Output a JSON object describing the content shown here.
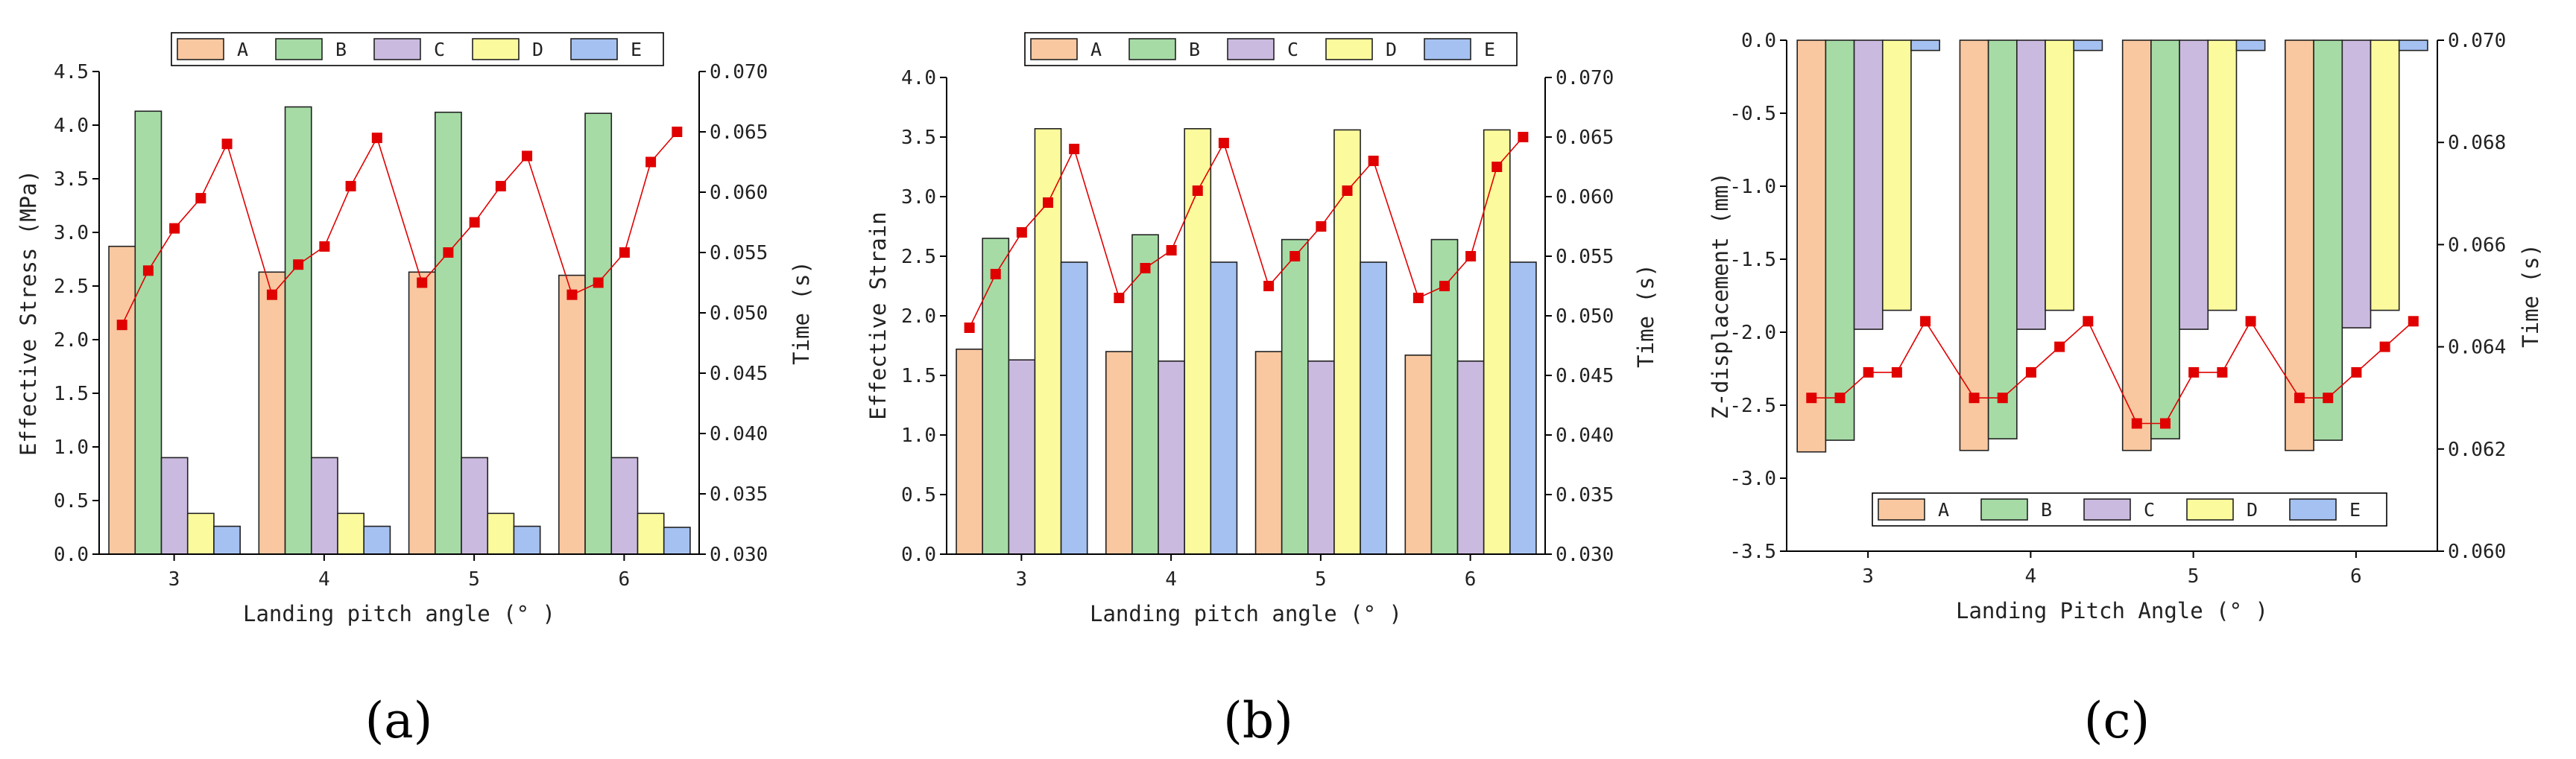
{
  "colors": {
    "A": "#f9c8a0",
    "B": "#a6dba6",
    "C": "#cbbadf",
    "D": "#fbfb9d",
    "E": "#a5c1f1",
    "marker": "#e00000"
  },
  "series_names": [
    "A",
    "B",
    "C",
    "D",
    "E"
  ],
  "chart_data": [
    {
      "type": "bar",
      "title": "",
      "panel_label": "(a)",
      "xlabel": "Landing pitch angle (° )",
      "ylabel": "Effective Stress (MPa)",
      "y2label": "Time (s)",
      "categories": [
        "3",
        "4",
        "5",
        "6"
      ],
      "ylim": [
        0,
        4.5
      ],
      "yticks": [
        "0.0",
        "0.5",
        "1.0",
        "1.5",
        "2.0",
        "2.5",
        "3.0",
        "3.5",
        "4.0",
        "4.5"
      ],
      "y2lim": [
        0.03,
        0.07
      ],
      "y2ticks": [
        "0.030",
        "0.035",
        "0.040",
        "0.045",
        "0.050",
        "0.055",
        "0.060",
        "0.065",
        "0.070"
      ],
      "legend_position": "top",
      "series": [
        {
          "name": "A",
          "values": [
            2.87,
            2.63,
            2.63,
            2.6
          ]
        },
        {
          "name": "B",
          "values": [
            4.13,
            4.17,
            4.12,
            4.11
          ]
        },
        {
          "name": "C",
          "values": [
            0.9,
            0.9,
            0.9,
            0.9
          ]
        },
        {
          "name": "D",
          "values": [
            0.38,
            0.38,
            0.38,
            0.38
          ]
        },
        {
          "name": "E",
          "values": [
            0.26,
            0.26,
            0.26,
            0.25
          ]
        }
      ],
      "time_series": {
        "name": "Time",
        "values": [
          [
            0.049,
            0.0535,
            0.057,
            0.0595,
            0.064
          ],
          [
            0.0515,
            0.054,
            0.0555,
            0.0605,
            0.0645
          ],
          [
            0.0525,
            0.055,
            0.0575,
            0.0605,
            0.063
          ],
          [
            0.0515,
            0.0525,
            0.055,
            0.0625,
            0.065
          ]
        ]
      }
    },
    {
      "type": "bar",
      "title": "",
      "panel_label": "(b)",
      "xlabel": "Landing pitch angle (° )",
      "ylabel": "Effective Strain",
      "y2label": "Time (s)",
      "categories": [
        "3",
        "4",
        "5",
        "6"
      ],
      "ylim": [
        0,
        4.0
      ],
      "yticks": [
        "0.0",
        "0.5",
        "1.0",
        "1.5",
        "2.0",
        "2.5",
        "3.0",
        "3.5",
        "4.0"
      ],
      "y2lim": [
        0.03,
        0.07
      ],
      "y2ticks": [
        "0.030",
        "0.035",
        "0.040",
        "0.045",
        "0.050",
        "0.055",
        "0.060",
        "0.065",
        "0.070"
      ],
      "legend_position": "top",
      "series": [
        {
          "name": "A",
          "values": [
            1.72,
            1.7,
            1.7,
            1.67
          ]
        },
        {
          "name": "B",
          "values": [
            2.65,
            2.68,
            2.64,
            2.64
          ]
        },
        {
          "name": "C",
          "values": [
            1.63,
            1.62,
            1.62,
            1.62
          ]
        },
        {
          "name": "D",
          "values": [
            3.57,
            3.57,
            3.56,
            3.56
          ]
        },
        {
          "name": "E",
          "values": [
            2.45,
            2.45,
            2.45,
            2.45
          ]
        }
      ],
      "time_series": {
        "name": "Time",
        "values": [
          [
            0.049,
            0.0535,
            0.057,
            0.0595,
            0.064
          ],
          [
            0.0515,
            0.054,
            0.0555,
            0.0605,
            0.0645
          ],
          [
            0.0525,
            0.055,
            0.0575,
            0.0605,
            0.063
          ],
          [
            0.0515,
            0.0525,
            0.055,
            0.0625,
            0.065
          ]
        ]
      }
    },
    {
      "type": "bar",
      "title": "",
      "panel_label": "(c)",
      "xlabel": "Landing Pitch Angle (° )",
      "ylabel": "Z-displacement (mm)",
      "y2label": "Time (s)",
      "categories": [
        "3",
        "4",
        "5",
        "6"
      ],
      "ylim": [
        -3.5,
        0
      ],
      "yticks": [
        "-3.5",
        "-3.0",
        "-2.5",
        "-2.0",
        "-1.5",
        "-1.0",
        "-0.5",
        "0.0"
      ],
      "y2lim": [
        0.06,
        0.07
      ],
      "y2ticks": [
        "0.060",
        "0.062",
        "0.064",
        "0.066",
        "0.068",
        "0.070"
      ],
      "legend_position": "bottom",
      "series": [
        {
          "name": "A",
          "values": [
            -2.82,
            -2.81,
            -2.81,
            -2.81
          ]
        },
        {
          "name": "B",
          "values": [
            -2.74,
            -2.73,
            -2.73,
            -2.74
          ]
        },
        {
          "name": "C",
          "values": [
            -1.98,
            -1.98,
            -1.98,
            -1.97
          ]
        },
        {
          "name": "D",
          "values": [
            -1.85,
            -1.85,
            -1.85,
            -1.85
          ]
        },
        {
          "name": "E",
          "values": [
            -0.07,
            -0.07,
            -0.07,
            -0.07
          ]
        }
      ],
      "time_series": {
        "name": "Time",
        "values": [
          [
            0.063,
            0.063,
            0.0635,
            0.0635,
            0.0645
          ],
          [
            0.063,
            0.063,
            0.0635,
            0.064,
            0.0645
          ],
          [
            0.0625,
            0.0625,
            0.0635,
            0.0635,
            0.0645
          ],
          [
            0.063,
            0.063,
            0.0635,
            0.064,
            0.0645
          ]
        ]
      }
    }
  ]
}
